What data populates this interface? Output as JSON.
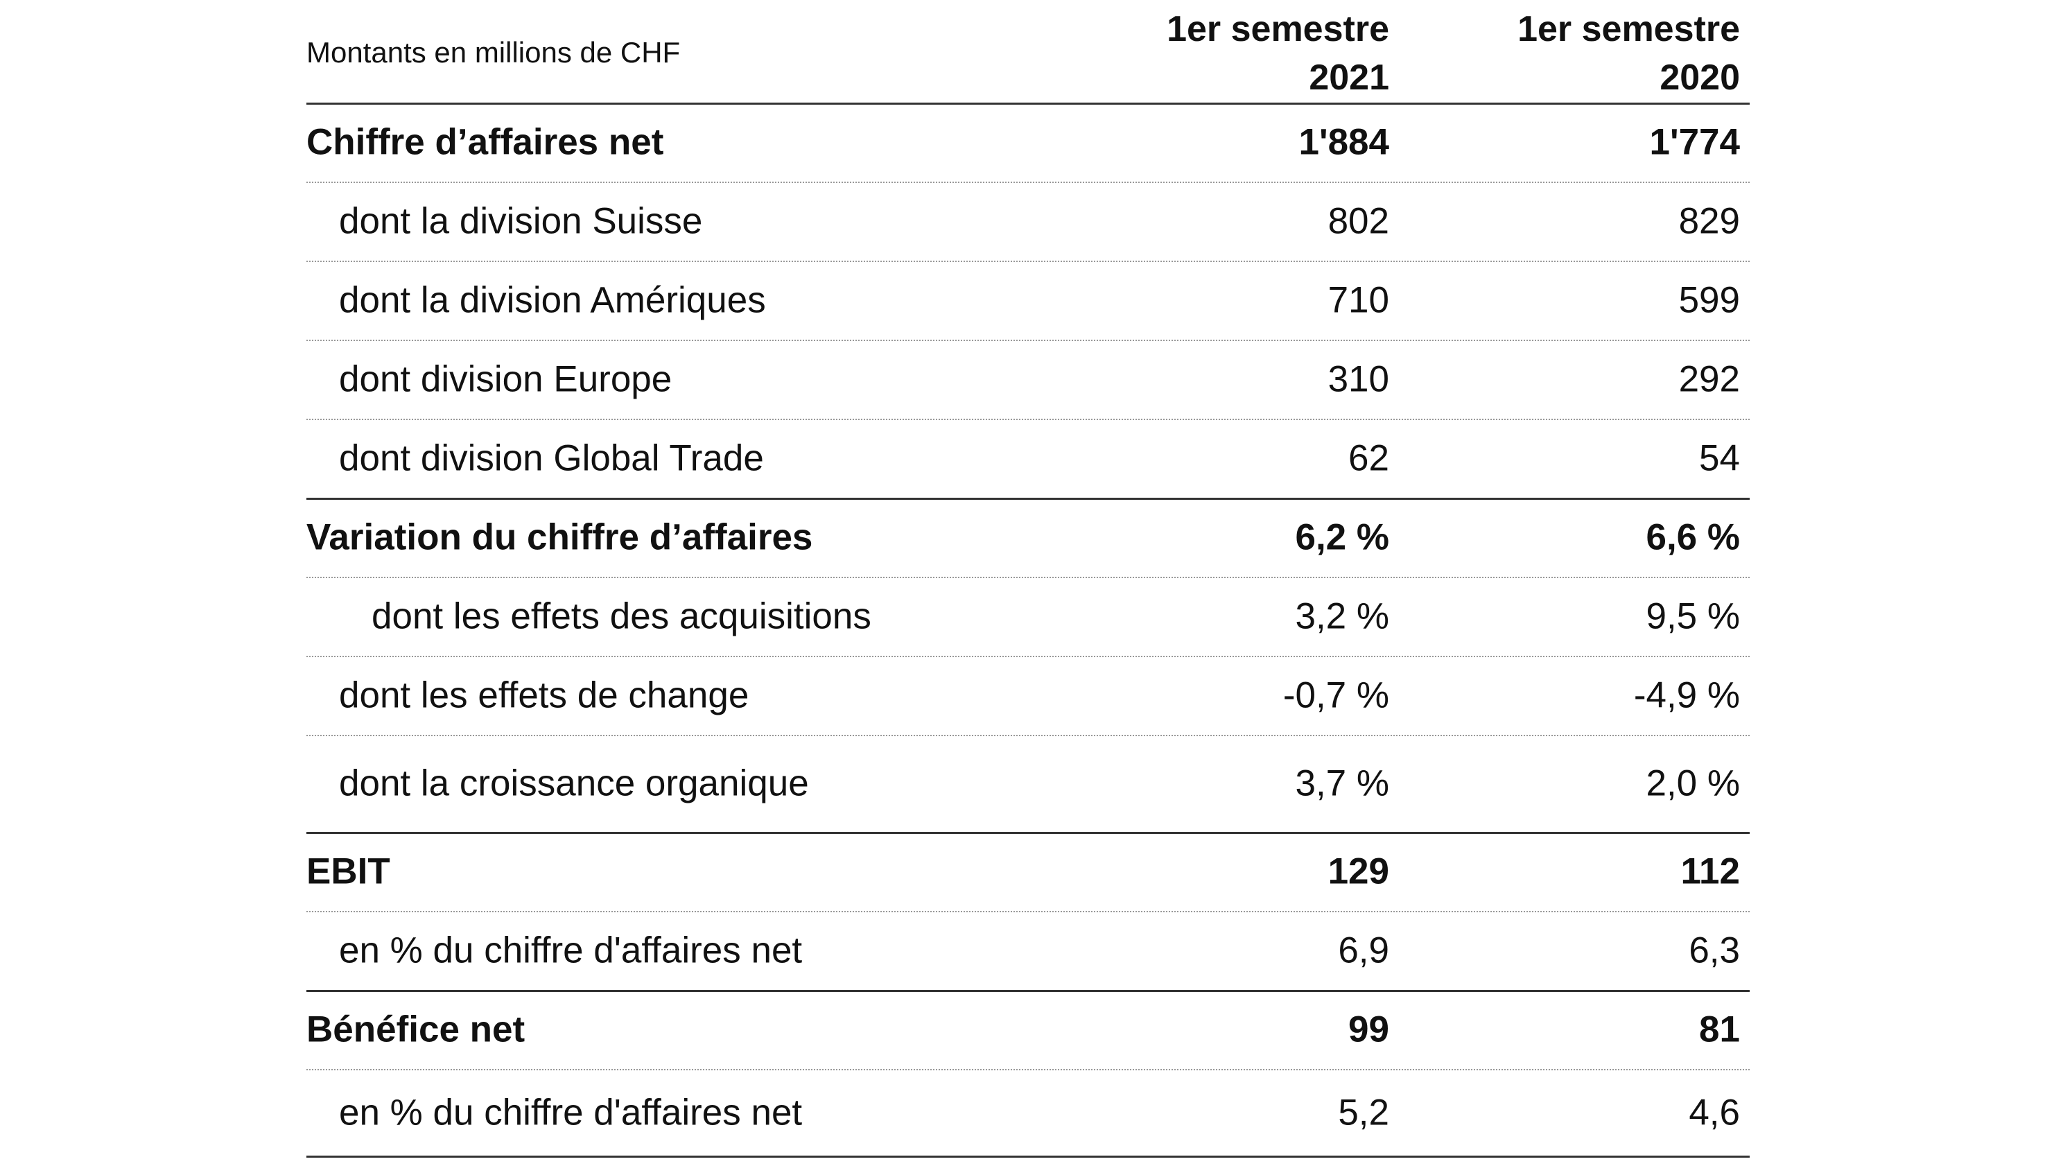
{
  "header": {
    "label": "Montants en millions de CHF",
    "columns": [
      [
        "1er semestre",
        "2021"
      ],
      [
        "1er semestre",
        "2020"
      ]
    ]
  },
  "rows": [
    {
      "label": "Chiffre d’affaires net",
      "values": [
        "1'884",
        "1'774"
      ],
      "bold": true,
      "indent": 0
    },
    {
      "label": "dont la division Suisse",
      "values": [
        "802",
        "829"
      ],
      "bold": false,
      "indent": 1
    },
    {
      "label": "dont la division Amériques",
      "values": [
        "710",
        "599"
      ],
      "bold": false,
      "indent": 1
    },
    {
      "label": "dont division Europe",
      "values": [
        "310",
        "292"
      ],
      "bold": false,
      "indent": 1
    },
    {
      "label": "dont division Global Trade",
      "values": [
        "62",
        "54"
      ],
      "bold": false,
      "indent": 1
    },
    {
      "label": "Variation du chiffre d’affaires",
      "values": [
        "6,2 %",
        "6,6 %"
      ],
      "bold": true,
      "indent": 0
    },
    {
      "label": "dont les effets des acquisitions",
      "values": [
        "3,2 %",
        "9,5 %"
      ],
      "bold": false,
      "indent": 2
    },
    {
      "label": "dont les effets de change",
      "values": [
        "-0,7 %",
        "-4,9 %"
      ],
      "bold": false,
      "indent": 1
    },
    {
      "label": "dont la croissance organique",
      "values": [
        "3,7 %",
        "2,0 %"
      ],
      "bold": false,
      "indent": 1
    },
    {
      "label": "EBIT",
      "values": [
        "129",
        "112"
      ],
      "bold": true,
      "indent": 0
    },
    {
      "label": "en % du chiffre d'affaires net",
      "values": [
        "6,9",
        "6,3"
      ],
      "bold": false,
      "indent": 1
    },
    {
      "label": "Bénéfice net",
      "values": [
        "99",
        "81"
      ],
      "bold": true,
      "indent": 0
    },
    {
      "label": "en % du chiffre d'affaires net",
      "values": [
        "5,2",
        "4,6"
      ],
      "bold": false,
      "indent": 1
    }
  ]
}
